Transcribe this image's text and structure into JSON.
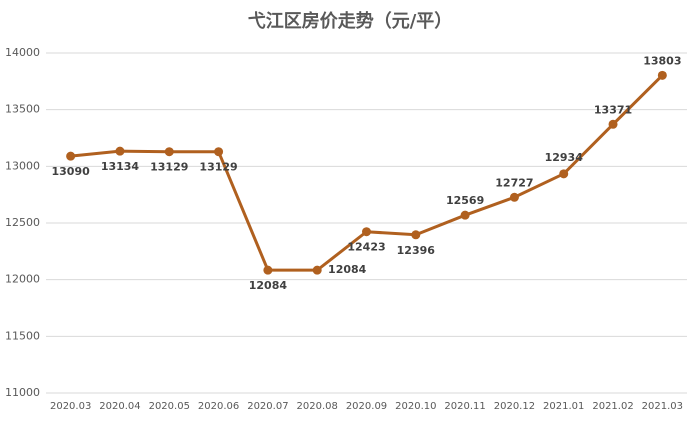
{
  "chart_data": {
    "type": "line",
    "title": "弋江区房价走势（元/平）",
    "categories": [
      "2020.03",
      "2020.04",
      "2020.05",
      "2020.06",
      "2020.07",
      "2020.08",
      "2020.09",
      "2020.10",
      "2020.11",
      "2020.12",
      "2021.01",
      "2021.02",
      "2021.03"
    ],
    "series": [
      {
        "name": "房价",
        "color": "#b0601f",
        "values": [
          13090,
          13134,
          13129,
          13129,
          12084,
          12084,
          12423,
          12396,
          12569,
          12727,
          12934,
          13371,
          13803
        ]
      }
    ],
    "ylim": [
      11000,
      14000
    ],
    "yticks": [
      11000,
      11500,
      12000,
      12500,
      13000,
      13500,
      14000
    ],
    "grid": true
  }
}
